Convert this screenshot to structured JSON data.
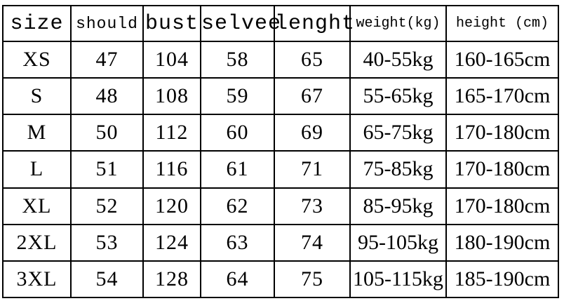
{
  "chart_data": {
    "type": "table",
    "title": "",
    "columns": [
      "size",
      "should",
      "bust",
      "selvee",
      "lenght",
      "weight(kg)",
      "height (cm)"
    ],
    "rows": [
      [
        "XS",
        "47",
        "104",
        "58",
        "65",
        "40-55kg",
        "160-165cm"
      ],
      [
        "S",
        "48",
        "108",
        "59",
        "67",
        "55-65kg",
        "165-170cm"
      ],
      [
        "M",
        "50",
        "112",
        "60",
        "69",
        "65-75kg",
        "170-180cm"
      ],
      [
        "L",
        "51",
        "116",
        "61",
        "71",
        "75-85kg",
        "170-180cm"
      ],
      [
        "XL",
        "52",
        "120",
        "62",
        "73",
        "85-95kg",
        "170-180cm"
      ],
      [
        "2XL",
        "53",
        "124",
        "63",
        "74",
        "95-105kg",
        "180-190cm"
      ],
      [
        "3XL",
        "54",
        "128",
        "64",
        "75",
        "105-115kg",
        "185-190cm"
      ]
    ]
  },
  "colors": {
    "border": "#000000",
    "text": "#000000",
    "background": "#ffffff"
  }
}
